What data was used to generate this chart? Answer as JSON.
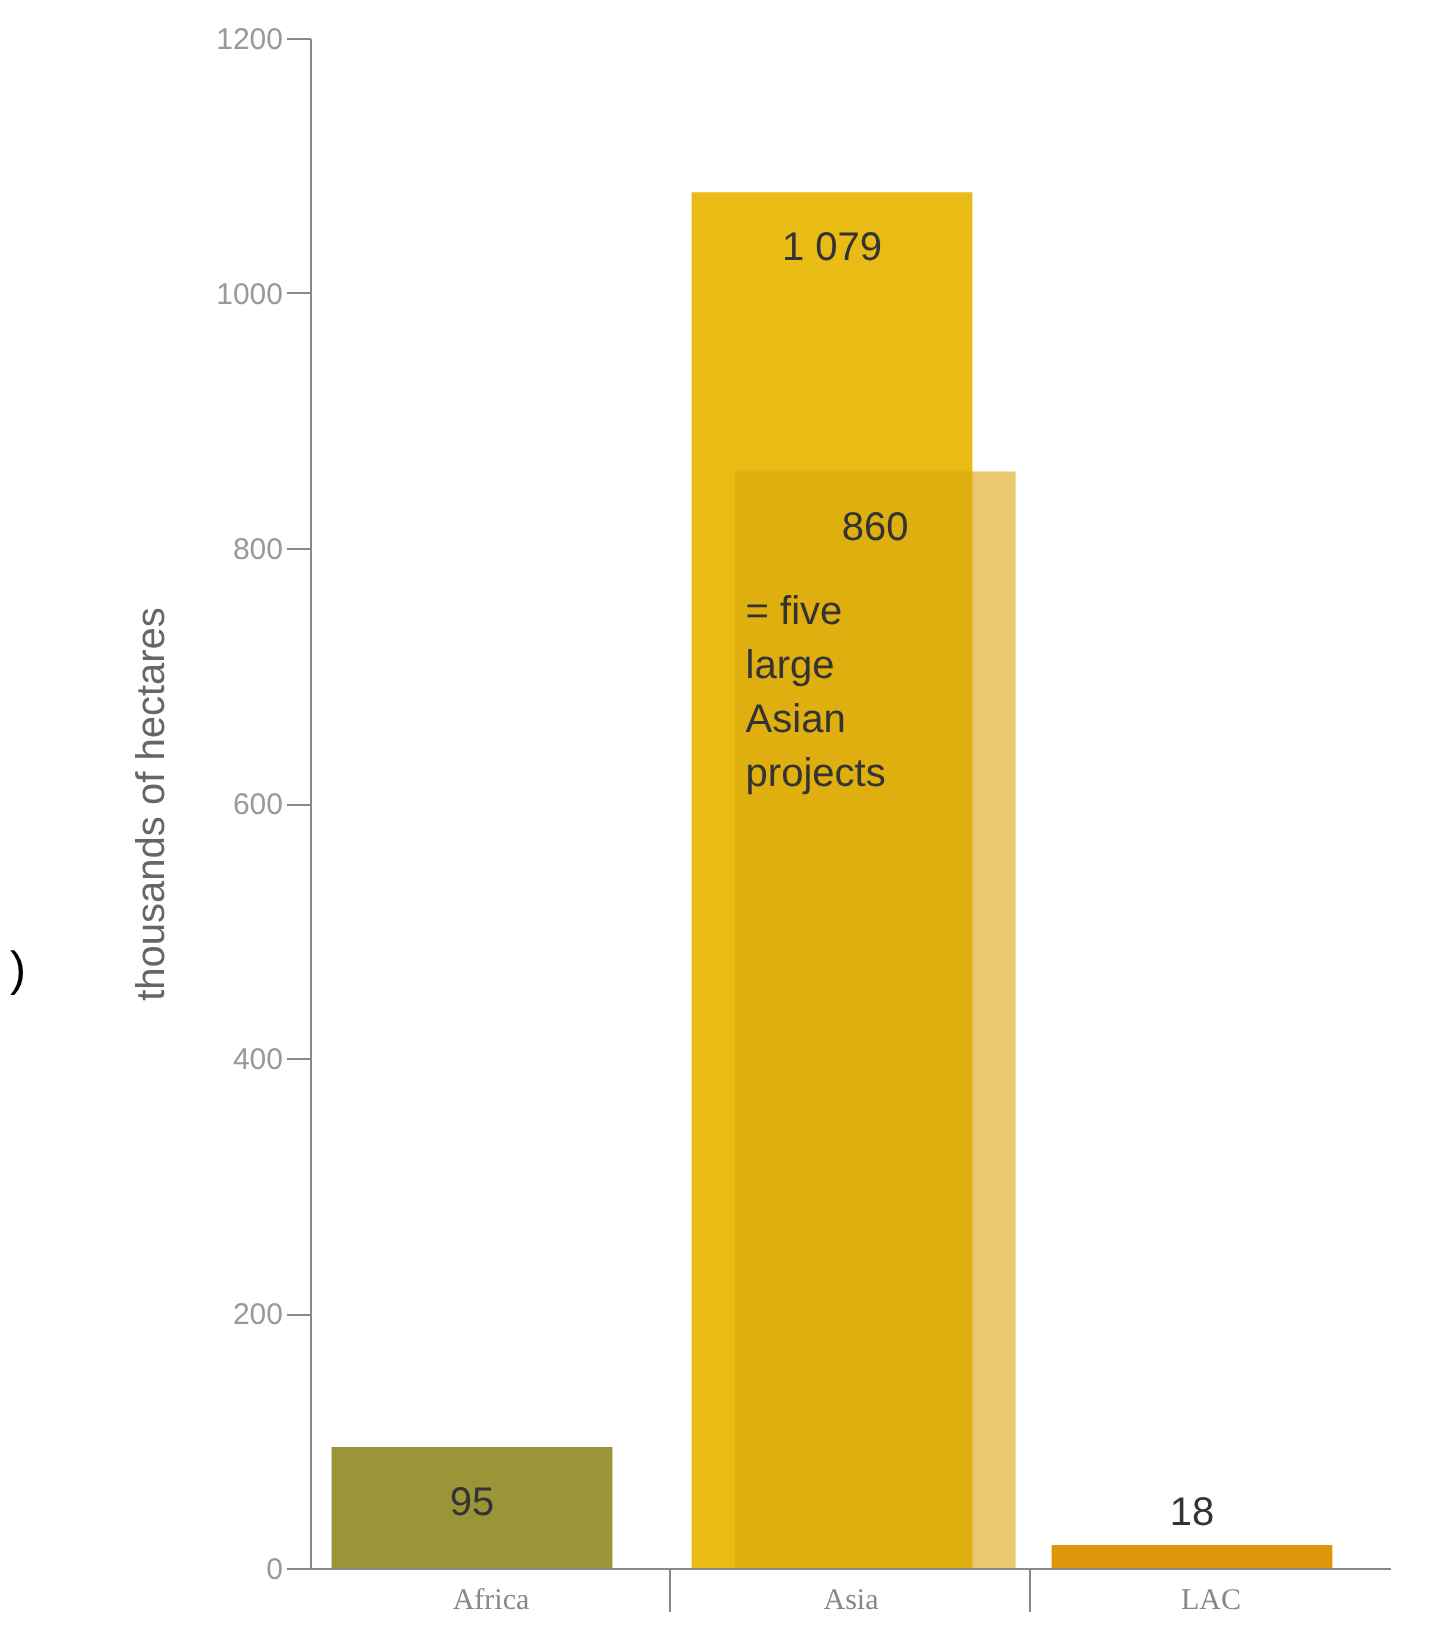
{
  "chart_data": {
    "type": "bar",
    "ylabel": "thousands of hectares",
    "categories": [
      "Africa",
      "Asia",
      "LAC"
    ],
    "series": [
      {
        "color": "#e8bc14",
        "colors": [
          "#9a9638",
          "#e8bc14",
          "#e0960a"
        ],
        "values": [
          95,
          1079,
          18
        ],
        "value_labels": [
          "95",
          "1 079",
          "18"
        ]
      },
      {
        "color": "#d9a50c",
        "values": [
          null,
          860,
          null
        ],
        "value_labels": [
          null,
          "860",
          null
        ]
      }
    ],
    "annotations": [
      {
        "text": "= five large Asian projects",
        "x": "Asia",
        "y": 860
      },
      ")"
    ],
    "ylim": [
      0,
      1200
    ],
    "yticks": [
      0,
      200,
      400,
      600,
      800,
      1000,
      1200
    ],
    "grid": false
  }
}
